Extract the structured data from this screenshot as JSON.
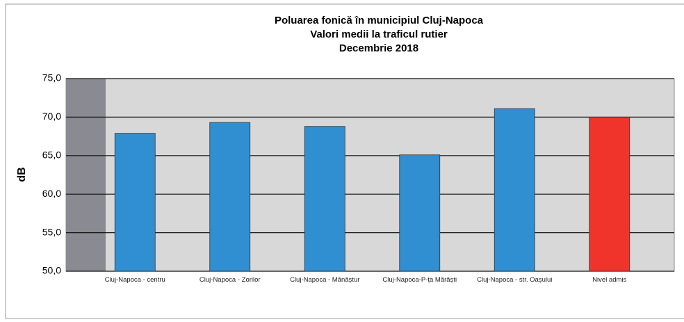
{
  "chart_data": {
    "type": "bar",
    "title": [
      "Poluarea fonică în municipiul Cluj-Napoca",
      "Valori medii la traficul rutier",
      "Decembrie 2018"
    ],
    "y_label": "dB",
    "categories": [
      "Cluj-Napoca - centru",
      "Cluj-Napoca - Zorilor",
      "Cluj-Napoca - Mănăștur",
      "Cluj-Napoca-P-ța Mărăști",
      "Cluj-Napoca - str. Oașului",
      "Nivel admis"
    ],
    "values": [
      67.9,
      69.3,
      68.8,
      65.1,
      71.1,
      70.0
    ],
    "colors": [
      "#2f8fd0",
      "#2f8fd0",
      "#2f8fd0",
      "#2f8fd0",
      "#2f8fd0",
      "#f0332b"
    ],
    "ylim": [
      50,
      75
    ],
    "yticks": [
      {
        "value": 50,
        "label": "50,0"
      },
      {
        "value": 55,
        "label": "55,0"
      },
      {
        "value": 60,
        "label": "60,0"
      },
      {
        "value": 65,
        "label": "65,0"
      },
      {
        "value": 70,
        "label": "70,0"
      },
      {
        "value": 75,
        "label": "75,0"
      }
    ],
    "grid": true
  }
}
